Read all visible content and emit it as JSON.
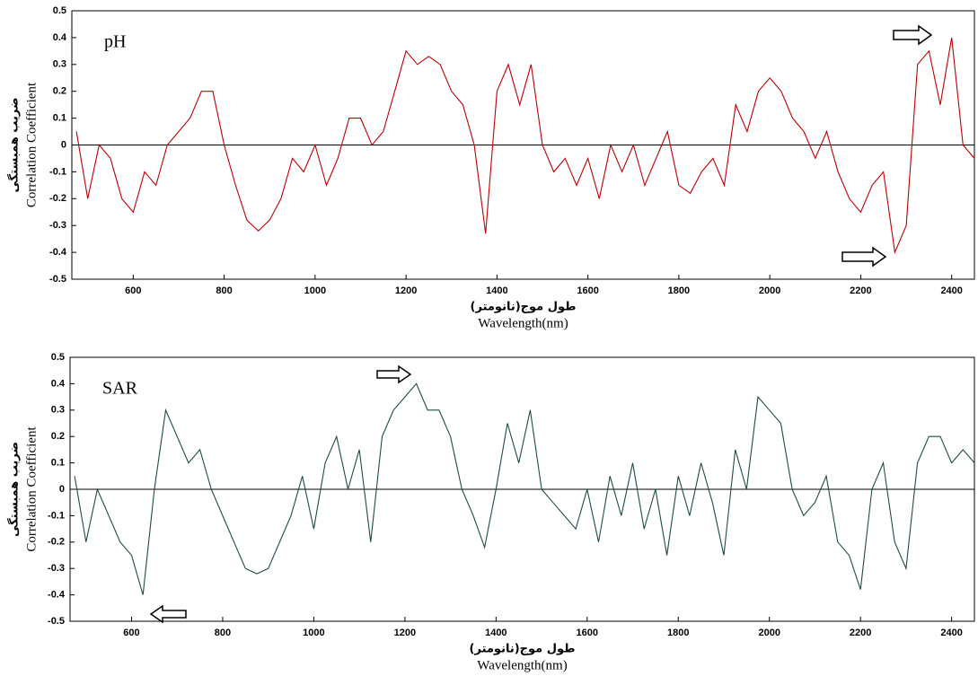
{
  "chart_data": [
    {
      "type": "line",
      "annotation": "pH",
      "ylabel": [
        "ضریب همبستگی",
        "Correlation Coefficient"
      ],
      "xlabel": [
        "طول موج(نانومتر)",
        "Wavelength(nm)"
      ],
      "x": [
        475,
        500,
        525,
        550,
        575,
        600,
        625,
        650,
        675,
        700,
        725,
        750,
        775,
        800,
        825,
        850,
        875,
        900,
        925,
        950,
        975,
        1000,
        1025,
        1050,
        1075,
        1100,
        1125,
        1150,
        1175,
        1200,
        1225,
        1250,
        1275,
        1300,
        1325,
        1350,
        1375,
        1400,
        1425,
        1450,
        1475,
        1500,
        1525,
        1550,
        1575,
        1600,
        1625,
        1650,
        1675,
        1700,
        1725,
        1750,
        1775,
        1800,
        1825,
        1850,
        1875,
        1900,
        1925,
        1950,
        1975,
        2000,
        2025,
        2050,
        2075,
        2100,
        2125,
        2150,
        2175,
        2200,
        2225,
        2250,
        2275,
        2300,
        2325,
        2350,
        2375,
        2400,
        2425,
        2450
      ],
      "series": [
        {
          "color": "#c00000",
          "values": [
            0.05,
            -0.2,
            0.0,
            -0.05,
            -0.2,
            -0.25,
            -0.1,
            -0.15,
            0.0,
            0.05,
            0.1,
            0.2,
            0.2,
            0.0,
            -0.15,
            -0.28,
            -0.32,
            -0.28,
            -0.2,
            -0.05,
            -0.1,
            0.0,
            -0.15,
            -0.05,
            0.1,
            0.1,
            0.0,
            0.05,
            0.2,
            0.35,
            0.3,
            0.33,
            0.3,
            0.2,
            0.15,
            0.0,
            -0.33,
            0.2,
            0.3,
            0.15,
            0.3,
            0.0,
            -0.1,
            -0.05,
            -0.15,
            -0.05,
            -0.2,
            0.0,
            -0.1,
            0.0,
            -0.15,
            -0.05,
            0.05,
            -0.15,
            -0.18,
            -0.1,
            -0.05,
            -0.15,
            0.15,
            0.05,
            0.2,
            0.25,
            0.2,
            0.1,
            0.05,
            -0.05,
            0.05,
            -0.1,
            -0.2,
            -0.25,
            -0.15,
            -0.1,
            -0.4,
            -0.3,
            0.3,
            0.35,
            0.15,
            0.4,
            0.0,
            -0.05
          ]
        }
      ],
      "xlim": [
        465,
        2450
      ],
      "ylim": [
        -0.5,
        0.5
      ],
      "xticks": [
        600,
        800,
        1000,
        1200,
        1400,
        1600,
        1800,
        2000,
        2200,
        2400
      ],
      "yticks": [
        -0.5,
        -0.4,
        -0.3,
        -0.2,
        -0.1,
        0,
        0.1,
        0.2,
        0.3,
        0.4,
        0.5
      ]
    },
    {
      "type": "line",
      "annotation": "SAR",
      "ylabel": [
        "ضریب همبستگی",
        "Correlation Coefficient"
      ],
      "xlabel": [
        "طول موج(نانومتر)",
        "Wavelength(nm)"
      ],
      "x": [
        475,
        500,
        525,
        550,
        575,
        600,
        625,
        650,
        675,
        700,
        725,
        750,
        775,
        800,
        825,
        850,
        875,
        900,
        925,
        950,
        975,
        1000,
        1025,
        1050,
        1075,
        1100,
        1125,
        1150,
        1175,
        1200,
        1225,
        1250,
        1275,
        1300,
        1325,
        1350,
        1375,
        1400,
        1425,
        1450,
        1475,
        1500,
        1525,
        1550,
        1575,
        1600,
        1625,
        1650,
        1675,
        1700,
        1725,
        1750,
        1775,
        1800,
        1825,
        1850,
        1875,
        1900,
        1925,
        1950,
        1975,
        2000,
        2025,
        2050,
        2075,
        2100,
        2125,
        2150,
        2175,
        2200,
        2225,
        2250,
        2275,
        2300,
        2325,
        2350,
        2375,
        2400,
        2425,
        2450
      ],
      "series": [
        {
          "color": "#1f4e3d",
          "values": [
            0.05,
            -0.2,
            0.0,
            -0.1,
            -0.2,
            -0.25,
            -0.4,
            0.0,
            0.3,
            0.2,
            0.1,
            0.15,
            0.0,
            -0.1,
            -0.2,
            -0.3,
            -0.32,
            -0.3,
            -0.2,
            -0.1,
            0.05,
            -0.15,
            0.1,
            0.2,
            0.0,
            0.15,
            -0.2,
            0.2,
            0.3,
            0.35,
            0.4,
            0.3,
            0.3,
            0.2,
            0.0,
            -0.1,
            -0.22,
            0.0,
            0.25,
            0.1,
            0.3,
            0.0,
            -0.05,
            -0.1,
            -0.15,
            0.0,
            -0.2,
            0.05,
            -0.1,
            0.1,
            -0.15,
            0.0,
            -0.25,
            0.05,
            -0.1,
            0.1,
            -0.05,
            -0.25,
            0.15,
            0.0,
            0.35,
            0.3,
            0.25,
            0.0,
            -0.1,
            -0.05,
            0.05,
            -0.2,
            -0.25,
            -0.38,
            0.0,
            0.1,
            -0.2,
            -0.3,
            0.1,
            0.2,
            0.2,
            0.1,
            0.15,
            0.1
          ]
        }
      ],
      "xlim": [
        465,
        2450
      ],
      "ylim": [
        -0.5,
        0.5
      ],
      "xticks": [
        600,
        800,
        1000,
        1200,
        1400,
        1600,
        1800,
        2000,
        2200,
        2400
      ],
      "yticks": [
        -0.5,
        -0.4,
        -0.3,
        -0.2,
        -0.1,
        0,
        0.1,
        0.2,
        0.3,
        0.4,
        0.5
      ]
    }
  ]
}
